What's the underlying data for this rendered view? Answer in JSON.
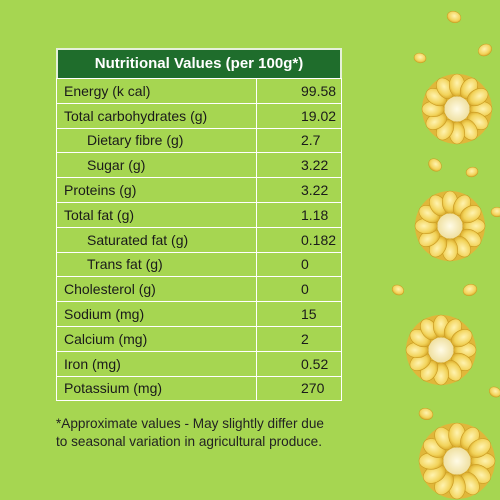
{
  "table": {
    "title": "Nutritional Values (per 100g*)",
    "rows": [
      {
        "label": "Energy (k cal)",
        "value": "99.58",
        "sub": false
      },
      {
        "label": "Total carbohydrates (g)",
        "value": "19.02",
        "sub": false
      },
      {
        "label": "Dietary fibre (g)",
        "value": "2.7",
        "sub": true
      },
      {
        "label": "Sugar (g)",
        "value": "3.22",
        "sub": true
      },
      {
        "label": "Proteins (g)",
        "value": "3.22",
        "sub": false
      },
      {
        "label": "Total fat (g)",
        "value": "1.18",
        "sub": false
      },
      {
        "label": "Saturated fat (g)",
        "value": "0.182",
        "sub": true
      },
      {
        "label": "Trans fat (g)",
        "value": "0",
        "sub": true
      },
      {
        "label": "Cholesterol (g)",
        "value": "0",
        "sub": false
      },
      {
        "label": "Sodium (mg)",
        "value": "15",
        "sub": false
      },
      {
        "label": "Calcium (mg)",
        "value": "2",
        "sub": false
      },
      {
        "label": "Iron (mg)",
        "value": "0.52",
        "sub": false
      },
      {
        "label": "Potassium (mg)",
        "value": "270",
        "sub": false
      }
    ]
  },
  "footnote": {
    "line1": "*Approximate values - May slightly differ due",
    "line2": "to seasonal variation in agricultural produce."
  },
  "colors": {
    "background": "#a6d651",
    "header": "#1f6d2c",
    "corn": "#f2d35a"
  },
  "decor": {
    "corn_icon": "corn-slice-icon",
    "kernel_icon": "corn-kernel-icon"
  }
}
